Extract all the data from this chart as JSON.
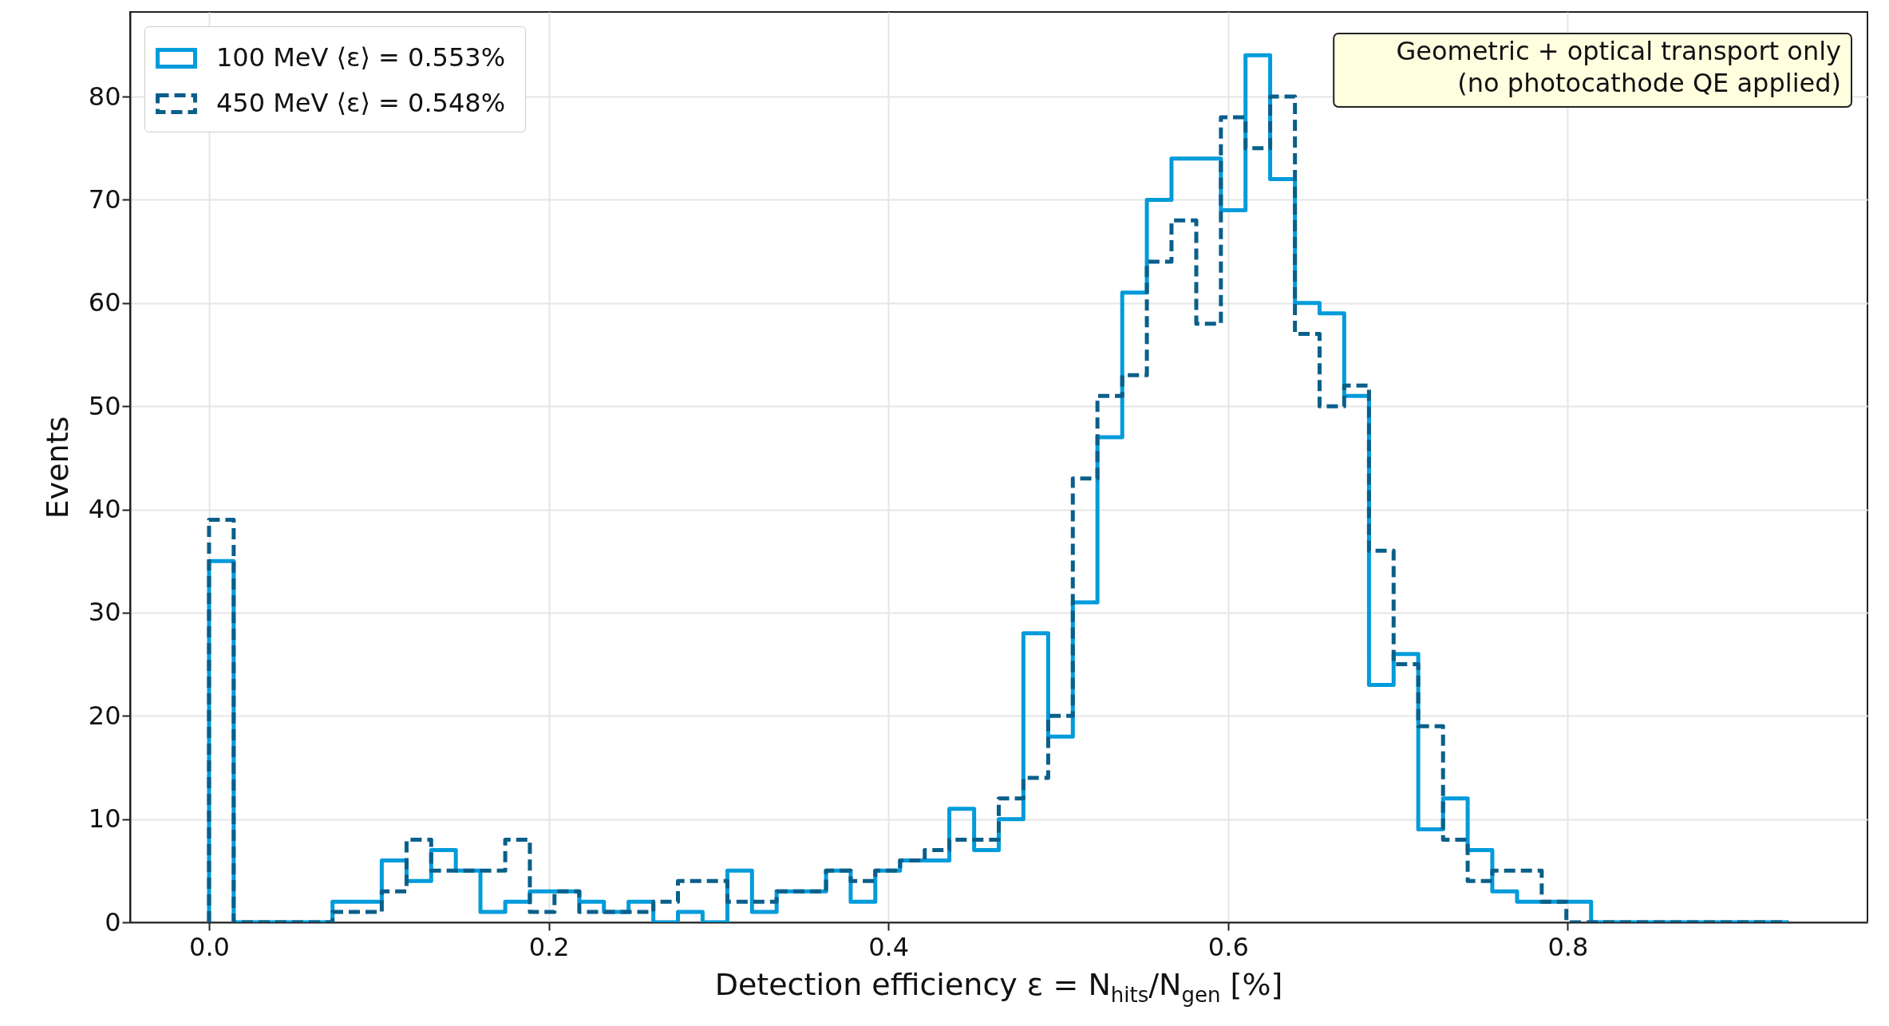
{
  "chart_data": {
    "type": "histogram",
    "xlabel": "Detection efficiency  ε = N$_{hits}$/N$_{gen}$ [%]",
    "ylabel": "Events",
    "annotations": [
      "Geometric + optical transport only\n(no photocathode QE applied)"
    ],
    "bins": [
      0,
      0.0145,
      0.0291,
      0.0436,
      0.0581,
      0.0727,
      0.0872,
      0.1017,
      0.1163,
      0.1308,
      0.1453,
      0.1598,
      0.1744,
      0.1889,
      0.2034,
      0.218,
      0.2325,
      0.247,
      0.2616,
      0.2761,
      0.2906,
      0.3052,
      0.3197,
      0.3342,
      0.3488,
      0.3633,
      0.3778,
      0.3923,
      0.4069,
      0.4214,
      0.4359,
      0.4505,
      0.465,
      0.4795,
      0.4941,
      0.5086,
      0.5231,
      0.5377,
      0.5522,
      0.5667,
      0.5813,
      0.5958,
      0.6103,
      0.6248,
      0.6394,
      0.6539,
      0.6684,
      0.683,
      0.6975,
      0.712,
      0.7266,
      0.7411,
      0.7556,
      0.7702,
      0.7847,
      0.7992,
      0.8138,
      0.8283,
      0.8428,
      0.8573,
      0.8719,
      0.8864,
      0.9009,
      0.9155,
      0.93
    ],
    "series": [
      {
        "name": "100 MeV  ⟨ε⟩ = 0.553%",
        "color": "#009bdb",
        "line_style": "solid",
        "values": [
          35,
          0,
          0,
          0,
          0,
          2,
          2,
          6,
          4,
          7,
          5,
          1,
          2,
          3,
          3,
          2,
          1,
          2,
          0,
          1,
          0,
          5,
          1,
          3,
          3,
          5,
          2,
          5,
          6,
          6,
          11,
          7,
          10,
          28,
          18,
          31,
          47,
          61,
          70,
          74,
          74,
          69,
          84,
          72,
          60,
          59,
          51,
          23,
          26,
          9,
          12,
          7,
          3,
          2,
          2,
          2,
          0,
          0,
          0,
          0,
          0,
          0,
          0,
          0
        ]
      },
      {
        "name": "450 MeV  ⟨ε⟩ = 0.548%",
        "color": "#0a5f8a",
        "line_style": "dashed",
        "values": [
          39,
          0,
          0,
          0,
          0,
          1,
          1,
          3,
          8,
          5,
          5,
          5,
          8,
          1,
          3,
          1,
          1,
          1,
          2,
          4,
          4,
          2,
          2,
          3,
          3,
          5,
          4,
          5,
          6,
          7,
          8,
          8,
          12,
          14,
          20,
          43,
          51,
          53,
          64,
          68,
          58,
          78,
          75,
          80,
          57,
          50,
          52,
          36,
          25,
          19,
          8,
          4,
          5,
          5,
          2,
          0,
          0,
          0,
          0,
          0,
          0,
          0,
          0,
          0
        ]
      }
    ],
    "xlim": [
      -0.0465,
      0.9765
    ],
    "xticks": [
      {
        "value": 0,
        "label": "0.0"
      },
      0.2,
      0.4,
      0.6,
      0.8
    ],
    "ylim": [
      0,
      88.2
    ],
    "yticks": [
      0,
      10,
      20,
      30,
      40,
      50,
      60,
      70,
      80
    ],
    "grid": true,
    "legend": "top left"
  }
}
